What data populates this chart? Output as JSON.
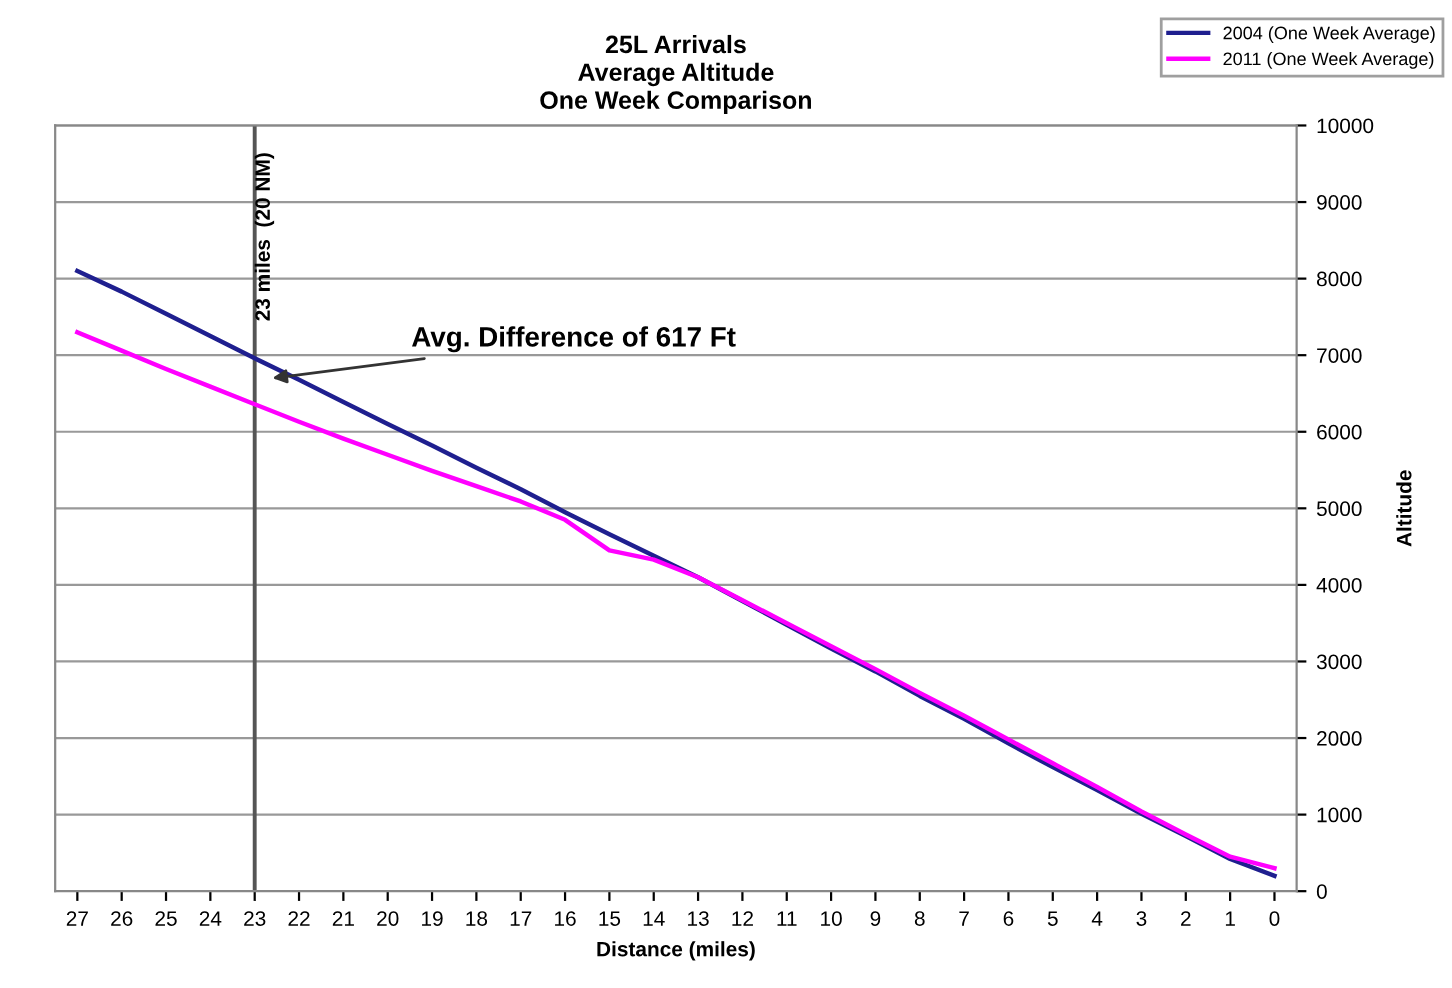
{
  "chart_data": {
    "type": "line",
    "title": "25L Arrivals\nAverage Altitude\nOne Week Comparison",
    "xlabel": "Distance (miles)",
    "ylabel": "Altitude",
    "x": [
      27,
      26,
      25,
      24,
      23,
      22,
      21,
      20,
      19,
      18,
      17,
      16,
      15,
      14,
      13,
      12,
      11,
      10,
      9,
      8,
      7,
      6,
      5,
      4,
      3,
      2,
      1,
      0
    ],
    "series": [
      {
        "name": "2004 (One Week Average)",
        "color": "#1f1f8f",
        "values": [
          8100,
          7830,
          7540,
          7250,
          6960,
          6680,
          6390,
          6100,
          5820,
          5530,
          5250,
          4950,
          4660,
          4380,
          4100,
          3790,
          3480,
          3170,
          2870,
          2550,
          2250,
          1930,
          1620,
          1320,
          1010,
          720,
          420,
          200
        ]
      },
      {
        "name": "2011 (One Week Average)",
        "color": "#ff00ff",
        "values": [
          7300,
          7060,
          6820,
          6590,
          6360,
          6130,
          5910,
          5700,
          5490,
          5290,
          5090,
          4850,
          4450,
          4330,
          4100,
          3800,
          3500,
          3200,
          2900,
          2590,
          2290,
          1980,
          1670,
          1360,
          1040,
          740,
          450,
          300
        ]
      }
    ],
    "xlim": [
      27.5,
      -0.5
    ],
    "xticks": [
      27,
      26,
      25,
      24,
      23,
      22,
      21,
      20,
      19,
      18,
      17,
      16,
      15,
      14,
      13,
      12,
      11,
      10,
      9,
      8,
      7,
      6,
      5,
      4,
      3,
      2,
      1,
      0
    ],
    "ylim": [
      0,
      10000
    ],
    "yticks": [
      0,
      1000,
      2000,
      3000,
      4000,
      5000,
      6000,
      7000,
      8000,
      9000,
      10000
    ],
    "grid": "y",
    "legend": "top right",
    "marker": "none",
    "line_style": "solid",
    "ref_lines": [
      {
        "axis": "x",
        "value": 23,
        "label": "23 miles  (20 NM)",
        "color": "#555555"
      }
    ],
    "annotations": [
      {
        "text": "Avg. Difference of 617 Ft",
        "x": 22.6,
        "y": 6700
      }
    ]
  }
}
